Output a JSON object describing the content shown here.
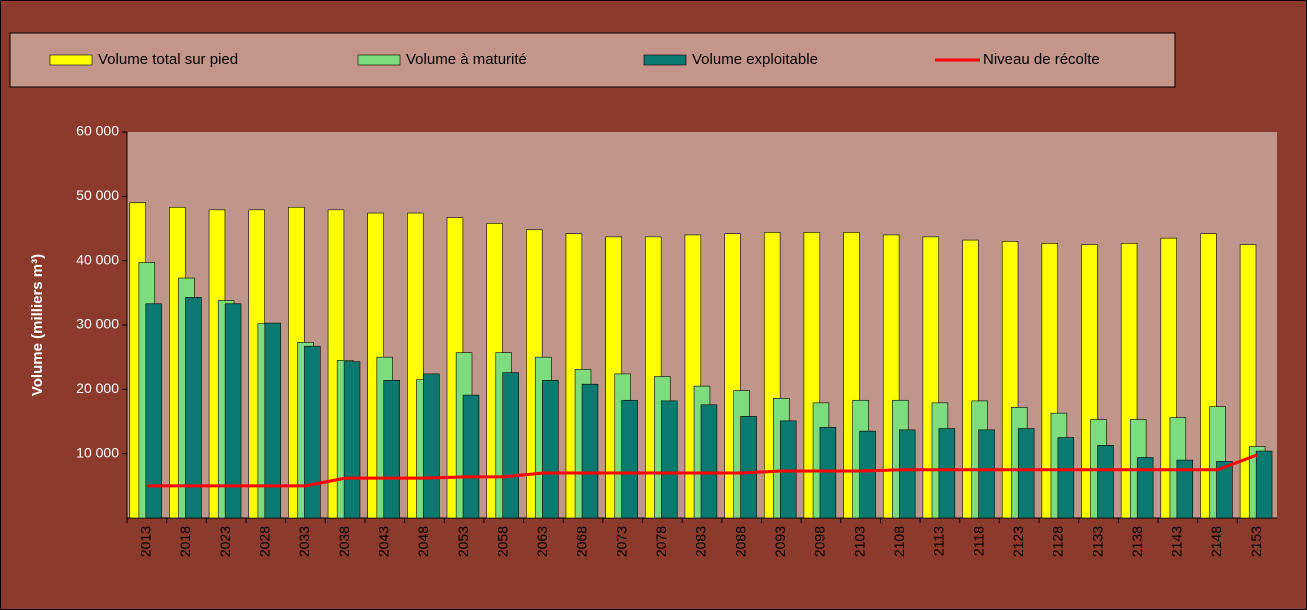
{
  "chart_data": {
    "type": "bar",
    "y_label": "Volume (milliers m³)",
    "categories": [
      "2013",
      "2018",
      "2023",
      "2028",
      "2033",
      "2038",
      "2043",
      "2048",
      "2053",
      "2058",
      "2063",
      "2068",
      "2073",
      "2078",
      "2083",
      "2088",
      "2093",
      "2098",
      "2103",
      "2108",
      "2113",
      "2118",
      "2123",
      "2128",
      "2133",
      "2138",
      "2143",
      "2148",
      "2153"
    ],
    "series": [
      {
        "name": "Volume total sur pied",
        "color": "#ffff00",
        "values": [
          49000,
          48300,
          47900,
          47900,
          48300,
          47900,
          47400,
          47400,
          46700,
          45800,
          44800,
          44200,
          43700,
          43700,
          44000,
          44200,
          44400,
          44400,
          44400,
          44000,
          43700,
          43200,
          43000,
          42700,
          42500,
          42700,
          43500,
          44200,
          42500
        ]
      },
      {
        "name": "Volume à maturité",
        "color": "#7ddc7d",
        "values": [
          39700,
          37300,
          33800,
          30200,
          27300,
          24500,
          25000,
          21500,
          25700,
          25700,
          25000,
          23100,
          22400,
          22000,
          20500,
          19800,
          18600,
          17900,
          18300,
          18300,
          17900,
          18200,
          17200,
          16300,
          15300,
          15300,
          15600,
          17300,
          11100
        ]
      },
      {
        "name": "Volume exploitable",
        "color": "#0a7a70",
        "values": [
          33300,
          34300,
          33300,
          30300,
          26700,
          24300,
          21400,
          22400,
          19100,
          22600,
          21400,
          20800,
          18300,
          18200,
          17600,
          15800,
          15100,
          14100,
          13500,
          13700,
          13900,
          13700,
          13900,
          12500,
          11300,
          9400,
          9000,
          8800,
          10400
        ]
      },
      {
        "name": "Niveau de récolte",
        "color": "#ff0000",
        "type": "line",
        "values": [
          5000,
          5000,
          5000,
          5000,
          5000,
          6200,
          6200,
          6200,
          6400,
          6400,
          7000,
          7000,
          7000,
          7000,
          7000,
          7000,
          7300,
          7300,
          7300,
          7500,
          7500,
          7500,
          7500,
          7500,
          7500,
          7500,
          7500,
          7500,
          9800
        ]
      }
    ],
    "ylim": [
      0,
      60000
    ],
    "yticks": [
      {
        "value": 10000,
        "label": "10 000"
      },
      {
        "value": 20000,
        "label": "20 000"
      },
      {
        "value": 30000,
        "label": "30 000"
      },
      {
        "value": 40000,
        "label": "40 000"
      },
      {
        "value": 50000,
        "label": "50 000"
      },
      {
        "value": 60000,
        "label": "60 000"
      }
    ],
    "grid": false
  }
}
